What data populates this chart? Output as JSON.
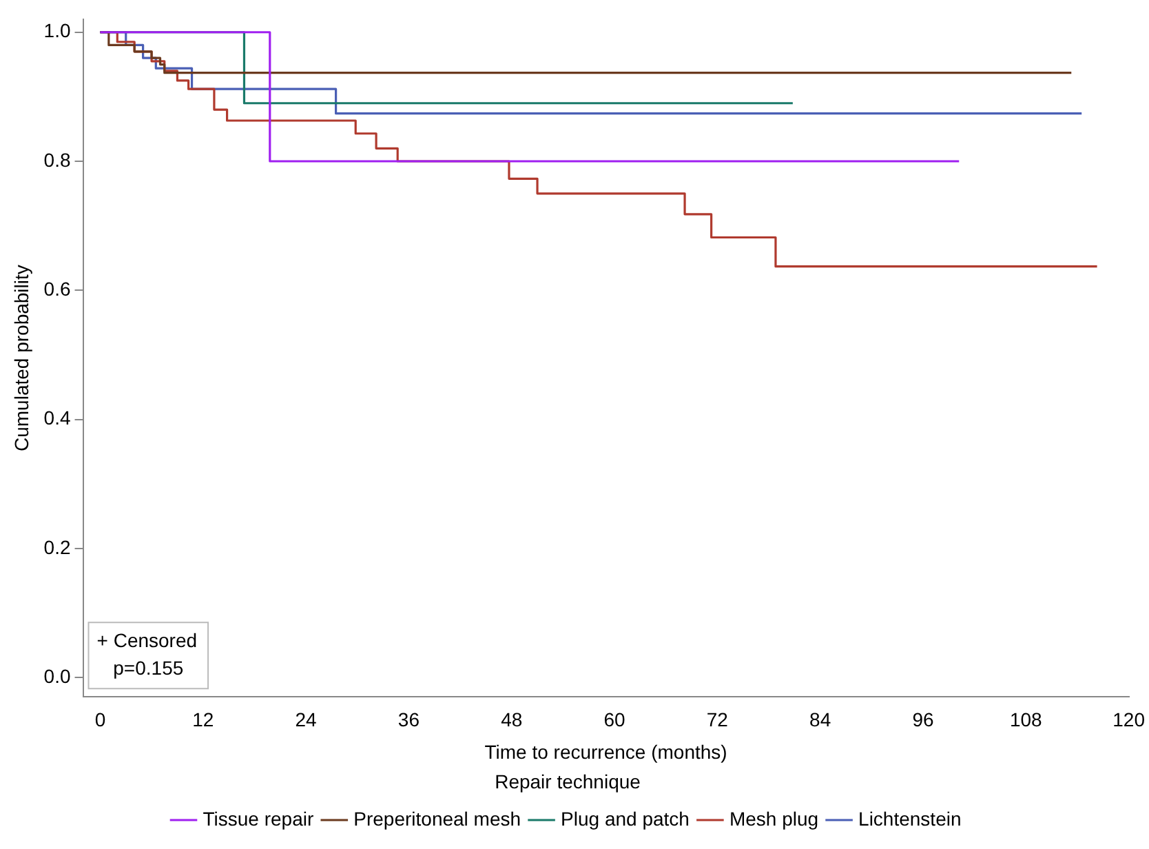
{
  "chart_data": {
    "type": "step",
    "xlabel": "Time to recurrence (months)",
    "ylabel": "Cumulated probability",
    "legend_title": "Repair technique",
    "legend": "bottom",
    "grid": false,
    "marker": "none",
    "line_style": "solid",
    "xlim": [
      -2,
      120
    ],
    "xticks": [
      0,
      12,
      24,
      36,
      48,
      60,
      72,
      84,
      96,
      108,
      120
    ],
    "ylim": [
      -0.03,
      1.02
    ],
    "yticks": [
      {
        "value": 0,
        "label": "0.0"
      },
      0.2,
      0.4,
      0.6,
      0.8,
      {
        "value": 1,
        "label": "1.0"
      }
    ],
    "annotations": [
      "+ Censored",
      "p=0.155"
    ],
    "series": [
      {
        "name": "Tissue repair",
        "color": "#a020f0",
        "x": [
          0,
          19.8,
          100.2
        ],
        "values": [
          1,
          0.8,
          0.8
        ]
      },
      {
        "name": "Preperitoneal mesh",
        "color": "#6b3a1f",
        "x": [
          0,
          1,
          4,
          6,
          7,
          7.5,
          113.3
        ],
        "values": [
          1,
          0.98,
          0.97,
          0.96,
          0.95,
          0.937,
          0.937
        ]
      },
      {
        "name": "Plug and patch",
        "color": "#1a7a6a",
        "x": [
          0,
          16.8,
          80.8
        ],
        "values": [
          1,
          0.89,
          0.89
        ]
      },
      {
        "name": "Mesh plug",
        "color": "#b03a2e",
        "x": [
          0,
          2,
          4,
          6,
          7.5,
          9,
          10.3,
          13.3,
          14.8,
          29.8,
          32.2,
          34.7,
          47.7,
          51,
          68.2,
          71.3,
          78.8,
          116.3
        ],
        "values": [
          1,
          0.985,
          0.97,
          0.955,
          0.94,
          0.925,
          0.912,
          0.88,
          0.863,
          0.843,
          0.82,
          0.8,
          0.773,
          0.75,
          0.718,
          0.682,
          0.637,
          0.637
        ]
      },
      {
        "name": "Lichtenstein",
        "color": "#4a5fb5",
        "x": [
          0,
          3,
          5,
          6.5,
          10.7,
          27.5,
          114.5
        ],
        "values": [
          1,
          0.98,
          0.96,
          0.944,
          0.912,
          0.874,
          0.874
        ]
      }
    ]
  }
}
